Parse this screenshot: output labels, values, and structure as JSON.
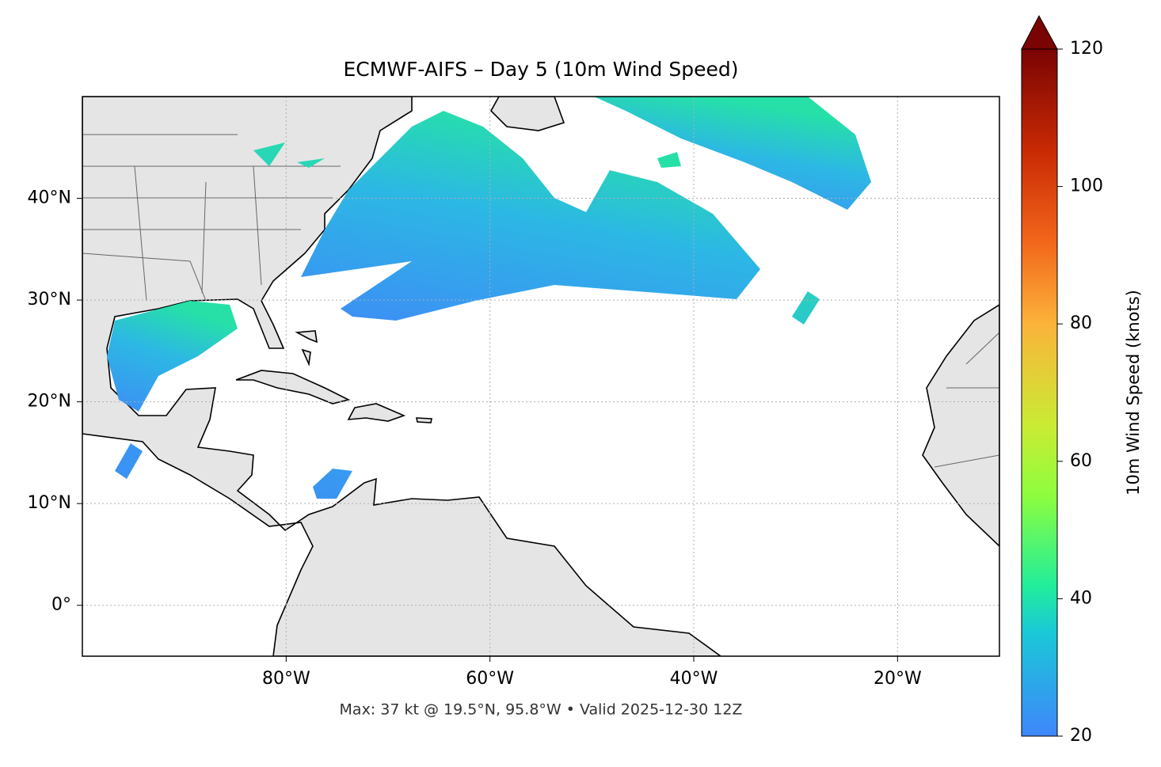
{
  "chart_data": {
    "type": "map",
    "title": "ECMWF-AIFS – Day 5 (10m Wind Speed)",
    "footer": "Max: 37 kt @ 19.5°N, 95.8°W • Valid 2025-12-30 12Z",
    "xlim": [
      -100,
      -10
    ],
    "ylim": [
      -5,
      50
    ],
    "xticks": [
      {
        "value": -80,
        "label": "80°W"
      },
      {
        "value": -60,
        "label": "60°W"
      },
      {
        "value": -40,
        "label": "40°W"
      },
      {
        "value": -20,
        "label": "20°W"
      }
    ],
    "yticks": [
      {
        "value": 0,
        "label": "0°"
      },
      {
        "value": 10,
        "label": "10°N"
      },
      {
        "value": 20,
        "label": "20°N"
      },
      {
        "value": 30,
        "label": "30°N"
      },
      {
        "value": 40,
        "label": "40°N"
      }
    ],
    "grid": true,
    "colorbar": {
      "label": "10m Wind Speed (knots)",
      "lim": [
        20,
        120
      ],
      "ticks": [
        20,
        40,
        60,
        80,
        100,
        120
      ]
    }
  }
}
